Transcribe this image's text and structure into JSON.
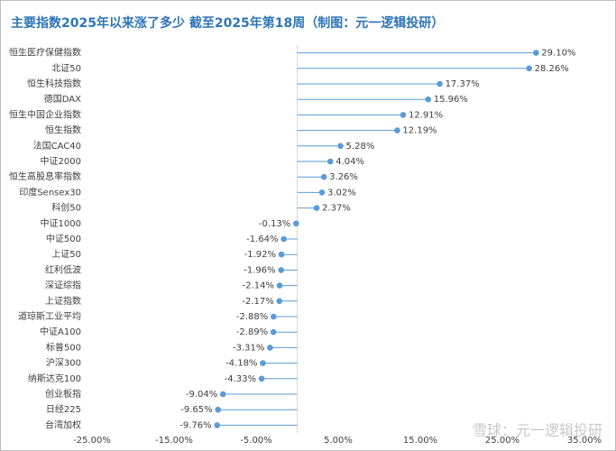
{
  "chart_data": {
    "type": "lollipop",
    "title": "主要指数2025年以来涨了多少  截至2025年第18周（制图：元一逻辑投研）",
    "watermark": "雪球：元一逻辑投研",
    "categories": [
      "恒生医疗保健指数",
      "北证50",
      "恒生科技指数",
      "德国DAX",
      "恒生中国企业指数",
      "恒生指数",
      "法国CAC40",
      "中证2000",
      "恒生高股息率指数",
      "印度Sensex30",
      "科创50",
      "中证1000",
      "中证500",
      "上证50",
      "红利低波",
      "深证综指",
      "上证指数",
      "道琼斯工业平均",
      "中证A100",
      "标普500",
      "沪深300",
      "纳斯达克100",
      "创业板指",
      "日经225",
      "台湾加权"
    ],
    "values": [
      29.1,
      28.26,
      17.37,
      15.96,
      12.91,
      12.19,
      5.28,
      4.04,
      3.26,
      3.02,
      2.37,
      -0.13,
      -1.64,
      -1.92,
      -1.96,
      -2.14,
      -2.17,
      -2.88,
      -2.89,
      -3.31,
      -4.18,
      -4.33,
      -9.04,
      -9.65,
      -9.76
    ],
    "value_labels": [
      "29.10%",
      "28.26%",
      "17.37%",
      "15.96%",
      "12.91%",
      "12.19%",
      "5.28%",
      "4.04%",
      "3.26%",
      "3.02%",
      "2.37%",
      "-0.13%",
      "-1.64%",
      "-1.92%",
      "-1.96%",
      "-2.14%",
      "-2.17%",
      "-2.88%",
      "-2.89%",
      "-3.31%",
      "-4.18%",
      "-4.33%",
      "-9.04%",
      "-9.65%",
      "-9.76%"
    ],
    "color": "#5b9bd5",
    "xlim": [
      -25,
      35
    ],
    "xticks": [
      {
        "value": -25,
        "label": "-25.00%"
      },
      {
        "value": -15,
        "label": "-15.00%"
      },
      {
        "value": -5,
        "label": "-5.00%"
      },
      {
        "value": 5,
        "label": "5.00%"
      },
      {
        "value": 15,
        "label": "15.00%"
      },
      {
        "value": 25,
        "label": "25.00%"
      },
      {
        "value": 35,
        "label": "35.00%"
      }
    ]
  }
}
